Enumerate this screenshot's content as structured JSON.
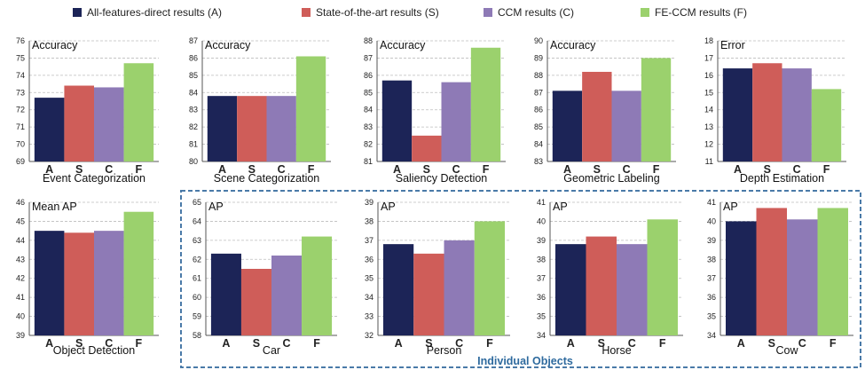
{
  "colors": {
    "A": "#1c2457",
    "S": "#cf5d59",
    "C": "#8e7ab6",
    "F": "#9bd16d",
    "group_box": "#4a7aa8"
  },
  "legend": [
    {
      "key": "A",
      "label": "All-features-direct results (A)"
    },
    {
      "key": "S",
      "label": "State-of-the-art results (S)"
    },
    {
      "key": "C",
      "label": "CCM results (C)"
    },
    {
      "key": "F",
      "label": "FE-CCM results (F)"
    }
  ],
  "group_label": "Individual Objects",
  "chart_data": [
    {
      "type": "bar",
      "title": "Event Categorization",
      "metric": "Accuracy",
      "categories": [
        "A",
        "S",
        "C",
        "F"
      ],
      "values": [
        72.7,
        73.4,
        73.3,
        74.7
      ],
      "ylim": [
        69,
        76
      ],
      "yticks": [
        69,
        70,
        71,
        72,
        73,
        74,
        75,
        76
      ]
    },
    {
      "type": "bar",
      "title": "Scene Categorization",
      "metric": "Accuracy",
      "categories": [
        "A",
        "S",
        "C",
        "F"
      ],
      "values": [
        83.8,
        83.8,
        83.8,
        86.1
      ],
      "ylim": [
        80,
        87
      ],
      "yticks": [
        80,
        81,
        82,
        83,
        84,
        85,
        86,
        87
      ]
    },
    {
      "type": "bar",
      "title": "Saliency Detection",
      "metric": "Accuracy",
      "categories": [
        "A",
        "S",
        "C",
        "F"
      ],
      "values": [
        85.7,
        82.5,
        85.6,
        87.6
      ],
      "ylim": [
        81,
        88
      ],
      "yticks": [
        81,
        82,
        83,
        84,
        85,
        86,
        87,
        88
      ]
    },
    {
      "type": "bar",
      "title": "Geometric Labeling",
      "metric": "Accuracy",
      "categories": [
        "A",
        "S",
        "C",
        "F"
      ],
      "values": [
        87.1,
        88.2,
        87.1,
        89.0
      ],
      "ylim": [
        83,
        90
      ],
      "yticks": [
        83,
        84,
        85,
        86,
        87,
        88,
        89,
        90
      ]
    },
    {
      "type": "bar",
      "title": "Depth Estimation",
      "metric": "Error",
      "categories": [
        "A",
        "S",
        "C",
        "F"
      ],
      "values": [
        16.4,
        16.7,
        16.4,
        15.2
      ],
      "ylim": [
        11,
        18
      ],
      "yticks": [
        11,
        12,
        13,
        14,
        15,
        16,
        17,
        18
      ]
    },
    {
      "type": "bar",
      "title": "Object Detection",
      "metric": "Mean AP",
      "categories": [
        "A",
        "S",
        "C",
        "F"
      ],
      "values": [
        44.5,
        44.4,
        44.5,
        45.5
      ],
      "ylim": [
        39,
        46
      ],
      "yticks": [
        39,
        40,
        41,
        42,
        43,
        44,
        45,
        46
      ]
    },
    {
      "type": "bar",
      "title": "Car",
      "metric": "AP",
      "categories": [
        "A",
        "S",
        "C",
        "F"
      ],
      "values": [
        62.3,
        61.5,
        62.2,
        63.2
      ],
      "ylim": [
        58,
        65
      ],
      "yticks": [
        58,
        59,
        60,
        61,
        62,
        63,
        64,
        65
      ]
    },
    {
      "type": "bar",
      "title": "Person",
      "metric": "AP",
      "categories": [
        "A",
        "S",
        "C",
        "F"
      ],
      "values": [
        36.8,
        36.3,
        37.0,
        38.0
      ],
      "ylim": [
        32,
        39
      ],
      "yticks": [
        32,
        33,
        34,
        35,
        36,
        37,
        38,
        39
      ]
    },
    {
      "type": "bar",
      "title": "Horse",
      "metric": "AP",
      "categories": [
        "A",
        "S",
        "C",
        "F"
      ],
      "values": [
        38.8,
        39.2,
        38.8,
        40.1
      ],
      "ylim": [
        34,
        41
      ],
      "yticks": [
        34,
        35,
        36,
        37,
        38,
        39,
        40,
        41
      ]
    },
    {
      "type": "bar",
      "title": "Cow",
      "metric": "AP",
      "categories": [
        "A",
        "S",
        "C",
        "F"
      ],
      "values": [
        40.0,
        40.7,
        40.1,
        40.7
      ],
      "ylim": [
        34,
        41
      ],
      "yticks": [
        34,
        35,
        36,
        37,
        38,
        39,
        40,
        41
      ]
    }
  ]
}
